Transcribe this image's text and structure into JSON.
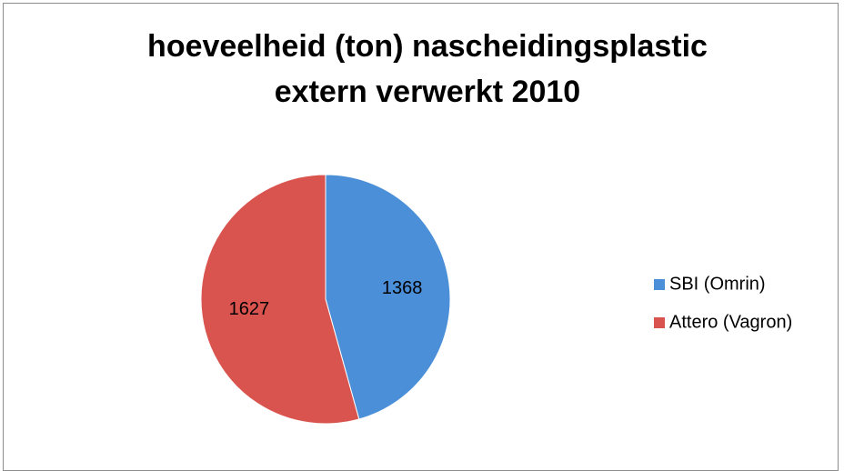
{
  "chart_data": {
    "type": "pie",
    "title": "hoeveelheid (ton) nascheidingsplastic extern verwerkt 2010",
    "categories": [
      "SBI (Omrin)",
      "Attero (Vagron)"
    ],
    "values": [
      1368,
      1627
    ],
    "colors": [
      "#4a8fd8",
      "#d9544e"
    ],
    "legend": "right"
  }
}
